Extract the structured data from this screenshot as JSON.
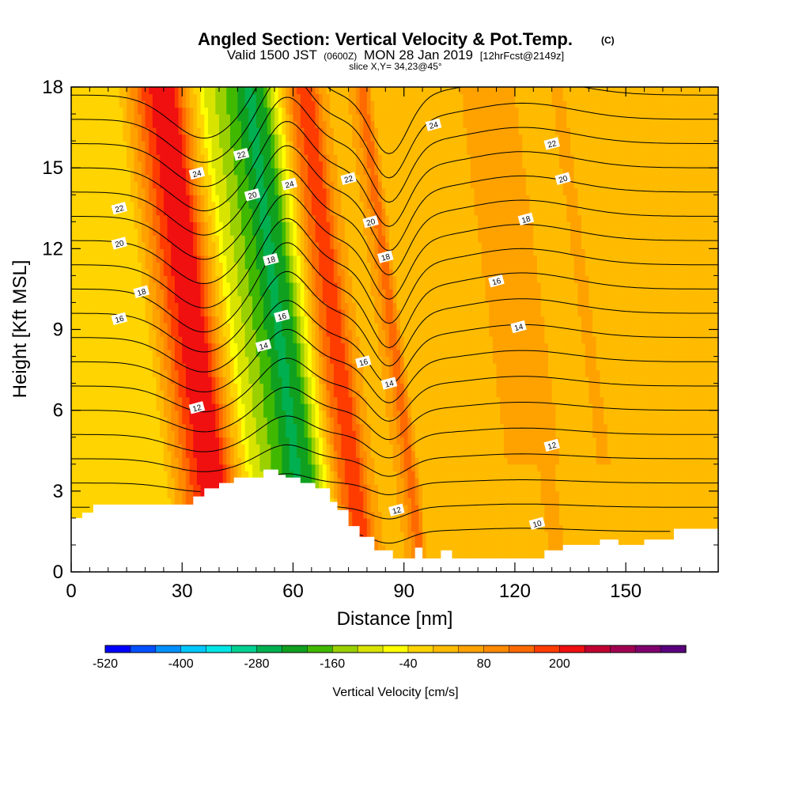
{
  "chart_data": {
    "type": "heatmap",
    "title": "Angled Section: Vertical Velocity & Pot.Temp.",
    "title_unit": "(C)",
    "subtitle_parts": [
      "Valid 1500 JST",
      "(0600Z)",
      "MON 28 Jan 2019",
      "[12hrFcst@2149z]"
    ],
    "slice_label": "slice X,Y= 34,23@45°",
    "xlabel": "Distance [nm]",
    "ylabel": "Height [Kft MSL]",
    "xlim": [
      0,
      175
    ],
    "ylim": [
      0,
      18
    ],
    "x_ticks": [
      "0",
      "30",
      "60",
      "90",
      "120",
      "150"
    ],
    "x_tick_values": [
      0,
      30,
      60,
      90,
      120,
      150
    ],
    "y_ticks": [
      "0",
      "3",
      "6",
      "9",
      "12",
      "15",
      "18"
    ],
    "y_tick_values": [
      0,
      3,
      6,
      9,
      12,
      15,
      18
    ],
    "colorbar": {
      "label": "Vertical Velocity [cm/s]",
      "tick_labels": [
        "-520",
        "-400",
        "-280",
        "-160",
        "-40",
        "80",
        "200"
      ],
      "tick_values": [
        -520,
        -400,
        -280,
        -160,
        -40,
        80,
        200
      ],
      "bin_start": -520,
      "bin_width": 40,
      "colors": [
        "#0000ff",
        "#0050ff",
        "#0090ff",
        "#00c8ff",
        "#00e6e6",
        "#00d090",
        "#00b050",
        "#10a020",
        "#40b800",
        "#9ad000",
        "#d8e400",
        "#ffff00",
        "#ffd400",
        "#ffbb00",
        "#ffa200",
        "#ff8a00",
        "#ff6a00",
        "#ff3c00",
        "#f01010",
        "#c00030",
        "#a00050",
        "#80006e",
        "#5a007e"
      ]
    },
    "vertical_velocity_columns": {
      "x": [
        0,
        10,
        15,
        20,
        25,
        28,
        32,
        36,
        40,
        44,
        48,
        52,
        56,
        60,
        64,
        68,
        72,
        76,
        80,
        84,
        87,
        90,
        95,
        110,
        120,
        125,
        128,
        132,
        136,
        140,
        145,
        150,
        160,
        175
      ],
      "w": [
        -40,
        -25,
        -40,
        -20,
        100,
        180,
        240,
        200,
        40,
        -80,
        -140,
        -190,
        -260,
        -200,
        -40,
        140,
        200,
        60,
        0,
        60,
        160,
        0,
        20,
        30,
        60,
        80,
        40,
        0,
        30,
        50,
        10,
        0,
        10,
        0
      ]
    },
    "theta_contours": {
      "levels": [
        10,
        12,
        14,
        16,
        18,
        20,
        22,
        24
      ],
      "labels": [
        {
          "text": "24",
          "x": 34,
          "y": 14.8
        },
        {
          "text": "22",
          "x": 46,
          "y": 15.5
        },
        {
          "text": "24",
          "x": 59,
          "y": 14.4
        },
        {
          "text": "22",
          "x": 75,
          "y": 14.6
        },
        {
          "text": "24",
          "x": 98,
          "y": 16.6
        },
        {
          "text": "22",
          "x": 130,
          "y": 15.9
        },
        {
          "text": "22",
          "x": 13,
          "y": 13.5
        },
        {
          "text": "20",
          "x": 49,
          "y": 14.0
        },
        {
          "text": "20",
          "x": 13,
          "y": 12.2
        },
        {
          "text": "20",
          "x": 81,
          "y": 13.0
        },
        {
          "text": "20",
          "x": 133,
          "y": 14.6
        },
        {
          "text": "18",
          "x": 19,
          "y": 10.4
        },
        {
          "text": "18",
          "x": 54,
          "y": 11.6
        },
        {
          "text": "18",
          "x": 85,
          "y": 11.7
        },
        {
          "text": "18",
          "x": 123,
          "y": 13.1
        },
        {
          "text": "16",
          "x": 13,
          "y": 9.4
        },
        {
          "text": "16",
          "x": 57,
          "y": 9.5
        },
        {
          "text": "16",
          "x": 79,
          "y": 7.8
        },
        {
          "text": "16",
          "x": 115,
          "y": 10.8
        },
        {
          "text": "14",
          "x": 52,
          "y": 8.4
        },
        {
          "text": "14",
          "x": 86,
          "y": 7.0
        },
        {
          "text": "14",
          "x": 121,
          "y": 9.1
        },
        {
          "text": "12",
          "x": 34,
          "y": 6.1
        },
        {
          "text": "12",
          "x": 88,
          "y": 2.3
        },
        {
          "text": "12",
          "x": 130,
          "y": 4.7
        },
        {
          "text": "10",
          "x": 126,
          "y": 1.8
        }
      ]
    },
    "terrain": {
      "x": [
        0,
        3,
        3,
        6,
        6,
        33,
        33,
        36,
        36,
        40,
        40,
        44,
        44,
        52,
        52,
        56,
        56,
        58,
        58,
        62,
        62,
        66,
        66,
        70,
        70,
        72,
        72,
        75,
        75,
        78,
        78,
        82,
        82,
        87,
        87,
        93,
        93,
        95,
        95,
        100,
        100,
        103,
        103,
        128,
        128,
        133,
        133,
        143,
        143,
        148,
        148,
        155,
        155,
        163,
        163,
        175
      ],
      "y": [
        2.0,
        2.0,
        2.2,
        2.2,
        2.5,
        2.5,
        2.8,
        2.8,
        3.1,
        3.1,
        3.3,
        3.3,
        3.5,
        3.5,
        3.8,
        3.8,
        3.6,
        3.6,
        3.5,
        3.5,
        3.3,
        3.3,
        3.1,
        3.1,
        2.6,
        2.6,
        2.3,
        2.3,
        1.7,
        1.7,
        1.3,
        1.3,
        0.8,
        0.8,
        0.5,
        0.5,
        0.9,
        0.9,
        0.5,
        0.5,
        0.8,
        0.8,
        0.5,
        0.5,
        0.8,
        0.8,
        1.0,
        1.0,
        1.2,
        1.2,
        1.0,
        1.0,
        1.2,
        1.2,
        1.6,
        1.6
      ]
    }
  }
}
